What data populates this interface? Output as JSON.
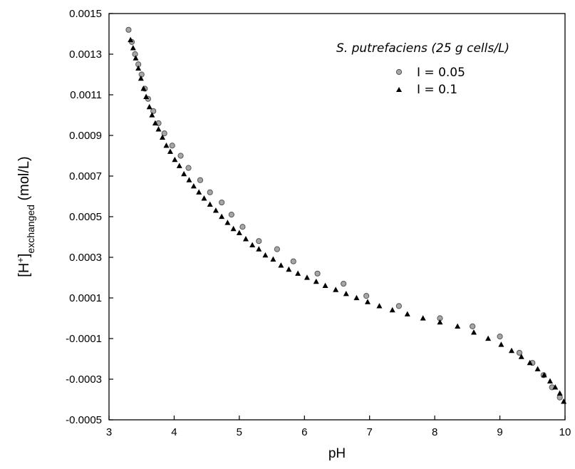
{
  "chart_data": {
    "type": "scatter",
    "xlabel": "pH",
    "ylabel": {
      "prefix": "[H",
      "sup": "+",
      "bracket": "]",
      "sub": "exchanged",
      "unit": " (mol/L)"
    },
    "xlim": [
      3,
      10
    ],
    "ylim": [
      -0.0005,
      0.0015
    ],
    "x_ticks": [
      "3",
      "4",
      "5",
      "6",
      "7",
      "8",
      "9",
      "10"
    ],
    "y_ticks": [
      "-0.0005",
      "-0.0003",
      "-0.0001",
      "0.0001",
      "0.0003",
      "0.0005",
      "0.0007",
      "0.0009",
      "0.0011",
      "0.0013",
      "0.0015"
    ],
    "grid": false,
    "legend_position": "top-right",
    "legend_title": "S. putrefaciens (25 g cells/L)",
    "colors": {
      "series1_fill": "#a6a6a6",
      "series1_stroke": "#555555",
      "series2_fill": "#000000"
    },
    "series": [
      {
        "name": "I = 0.05",
        "marker": "circle",
        "points": [
          [
            3.3,
            0.00142
          ],
          [
            3.35,
            0.00136
          ],
          [
            3.4,
            0.0013
          ],
          [
            3.45,
            0.00125
          ],
          [
            3.5,
            0.0012
          ],
          [
            3.55,
            0.00113
          ],
          [
            3.6,
            0.00108
          ],
          [
            3.68,
            0.00102
          ],
          [
            3.76,
            0.00096
          ],
          [
            3.85,
            0.00091
          ],
          [
            3.97,
            0.00085
          ],
          [
            4.1,
            0.0008
          ],
          [
            4.22,
            0.00074
          ],
          [
            4.4,
            0.00068
          ],
          [
            4.55,
            0.00062
          ],
          [
            4.73,
            0.00057
          ],
          [
            4.88,
            0.00051
          ],
          [
            5.05,
            0.00045
          ],
          [
            5.3,
            0.00038
          ],
          [
            5.58,
            0.00034
          ],
          [
            5.83,
            0.00028
          ],
          [
            6.2,
            0.00022
          ],
          [
            6.6,
            0.00017
          ],
          [
            6.95,
            0.00011
          ],
          [
            7.45,
            6e-05
          ],
          [
            8.08,
            0.0
          ],
          [
            8.58,
            -4e-05
          ],
          [
            9.0,
            -9e-05
          ],
          [
            9.3,
            -0.00017
          ],
          [
            9.5,
            -0.00022
          ],
          [
            9.67,
            -0.00028
          ],
          [
            9.8,
            -0.00034
          ],
          [
            9.92,
            -0.00039
          ]
        ]
      },
      {
        "name": "I = 0.1",
        "marker": "triangle",
        "points": [
          [
            3.33,
            0.00137
          ],
          [
            3.37,
            0.00133
          ],
          [
            3.41,
            0.00128
          ],
          [
            3.45,
            0.00123
          ],
          [
            3.49,
            0.00118
          ],
          [
            3.53,
            0.00113
          ],
          [
            3.57,
            0.00109
          ],
          [
            3.62,
            0.00104
          ],
          [
            3.66,
            0.001
          ],
          [
            3.71,
            0.00096
          ],
          [
            3.76,
            0.00093
          ],
          [
            3.82,
            0.00089
          ],
          [
            3.88,
            0.00085
          ],
          [
            3.94,
            0.00082
          ],
          [
            4.01,
            0.00078
          ],
          [
            4.08,
            0.00075
          ],
          [
            4.15,
            0.00071
          ],
          [
            4.23,
            0.00068
          ],
          [
            4.3,
            0.00065
          ],
          [
            4.38,
            0.00062
          ],
          [
            4.46,
            0.00059
          ],
          [
            4.55,
            0.00056
          ],
          [
            4.64,
            0.00053
          ],
          [
            4.73,
            0.0005
          ],
          [
            4.82,
            0.00047
          ],
          [
            4.91,
            0.00044
          ],
          [
            5.0,
            0.00042
          ],
          [
            5.1,
            0.00039
          ],
          [
            5.2,
            0.00036
          ],
          [
            5.3,
            0.00034
          ],
          [
            5.4,
            0.00031
          ],
          [
            5.52,
            0.00029
          ],
          [
            5.64,
            0.00026
          ],
          [
            5.76,
            0.00024
          ],
          [
            5.9,
            0.00022
          ],
          [
            6.04,
            0.0002
          ],
          [
            6.18,
            0.00018
          ],
          [
            6.32,
            0.00016
          ],
          [
            6.48,
            0.00014
          ],
          [
            6.64,
            0.00012
          ],
          [
            6.8,
            0.0001
          ],
          [
            6.97,
            8e-05
          ],
          [
            7.15,
            6e-05
          ],
          [
            7.35,
            4e-05
          ],
          [
            7.58,
            2e-05
          ],
          [
            7.82,
            0.0
          ],
          [
            8.08,
            -2e-05
          ],
          [
            8.35,
            -4e-05
          ],
          [
            8.6,
            -7e-05
          ],
          [
            8.82,
            -0.0001
          ],
          [
            9.02,
            -0.00013
          ],
          [
            9.18,
            -0.00016
          ],
          [
            9.33,
            -0.00019
          ],
          [
            9.46,
            -0.00022
          ],
          [
            9.58,
            -0.00025
          ],
          [
            9.68,
            -0.00028
          ],
          [
            9.77,
            -0.00031
          ],
          [
            9.85,
            -0.00034
          ],
          [
            9.92,
            -0.00037
          ],
          [
            9.98,
            -0.00041
          ]
        ]
      }
    ]
  }
}
